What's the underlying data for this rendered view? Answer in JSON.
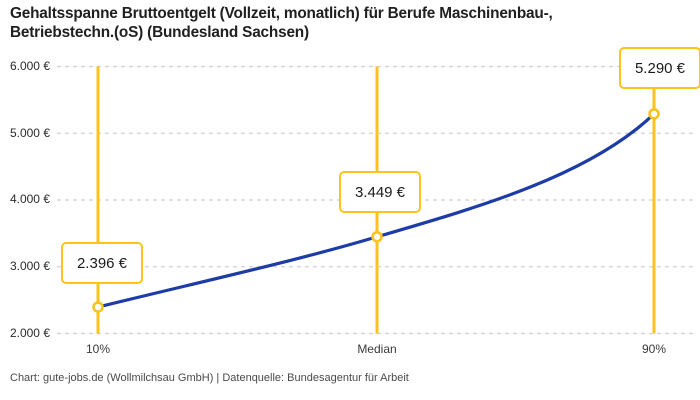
{
  "title_lines": [
    "Gehaltsspanne Bruttoentgelt (Vollzeit, monatlich) für Berufe Maschinenbau-,",
    "Betriebstechn.(oS) (Bundesland Sachsen)"
  ],
  "footer": "Chart: gute-jobs.de (Wollmilchsau GmbH) | Datenquelle: Bundesagentur für Arbeit",
  "chart_data": {
    "type": "line",
    "categories": [
      "10%",
      "Median",
      "90%"
    ],
    "values": [
      2396,
      3449,
      5290
    ],
    "value_labels": [
      "2.396 €",
      "3.449 €",
      "5.290 €"
    ],
    "series": [
      {
        "name": "Bruttoentgelt",
        "values": [
          2396,
          3449,
          5290
        ]
      }
    ],
    "yticks": [
      6000,
      5000,
      4000,
      3000,
      2000
    ],
    "ytick_labels": [
      "6.000 €",
      "5.000 €",
      "4.000 €",
      "3.000 €",
      "2.000 €"
    ],
    "ylim": [
      2000,
      6000
    ],
    "xlabel": "",
    "ylabel": "",
    "grid": "horizontal-dashed",
    "legend": "none",
    "annotations": "vertical percentile rules with value callout boxes at 10%, Median, 90%",
    "colors": {
      "accent_yellow": "#FCC31D",
      "line_blue": "#1E3CA5",
      "grid": "#CFCFCF",
      "title_text": "#202020",
      "tick_text": "#3a3a3a",
      "background": "#FFFFFF"
    }
  }
}
